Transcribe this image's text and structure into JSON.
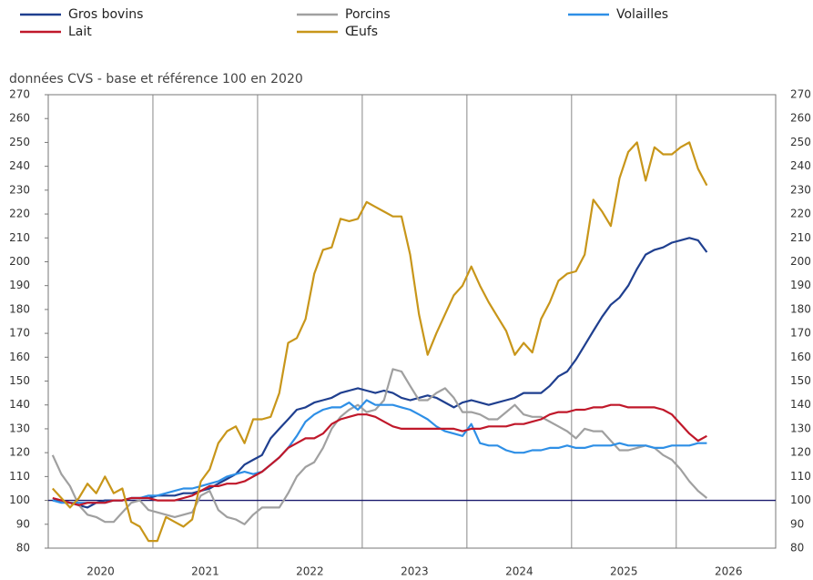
{
  "chart_data": {
    "type": "line",
    "subtitle": "données CVS - base et référence 100 en 2020",
    "x": [
      2020.042,
      2020.125,
      2020.208,
      2020.292,
      2020.375,
      2020.458,
      2020.542,
      2020.625,
      2020.708,
      2020.792,
      2020.875,
      2020.958,
      2021.042,
      2021.125,
      2021.208,
      2021.292,
      2021.375,
      2021.458,
      2021.542,
      2021.625,
      2021.708,
      2021.792,
      2021.875,
      2021.958,
      2022.042,
      2022.125,
      2022.208,
      2022.292,
      2022.375,
      2022.458,
      2022.542,
      2022.625,
      2022.708,
      2022.792,
      2022.875,
      2022.958,
      2023.042,
      2023.125,
      2023.208,
      2023.292,
      2023.375,
      2023.458,
      2023.542,
      2023.625,
      2023.708,
      2023.792,
      2023.875,
      2023.958,
      2024.042,
      2024.125,
      2024.208,
      2024.292,
      2024.375,
      2024.458,
      2024.542,
      2024.625,
      2024.708,
      2024.792,
      2024.875,
      2024.958,
      2025.042,
      2025.125,
      2025.208,
      2025.292,
      2025.375,
      2025.458,
      2025.542,
      2025.625,
      2025.708,
      2025.792,
      2025.875,
      2025.958,
      2026.042,
      2026.125,
      2026.208,
      2026.292
    ],
    "series": [
      {
        "name": "Gros bovins",
        "color": "#1f3f8f",
        "values": [
          100,
          100,
          99,
          98,
          97,
          99,
          100,
          100,
          100,
          101,
          101,
          101,
          102,
          102,
          102,
          103,
          103,
          104,
          105,
          107,
          109,
          111,
          115,
          117,
          119,
          126,
          130,
          134,
          138,
          139,
          141,
          142,
          143,
          145,
          146,
          147,
          146,
          145,
          146,
          145,
          143,
          142,
          143,
          144,
          143,
          141,
          139,
          141,
          142,
          141,
          140,
          141,
          142,
          143,
          145,
          145,
          145,
          148,
          152,
          154,
          159,
          165,
          171,
          177,
          182,
          185,
          190,
          197,
          203,
          205,
          206,
          208,
          209,
          210,
          209,
          204
        ]
      },
      {
        "name": "Porcins",
        "color": "#a0a0a0",
        "values": [
          119,
          111,
          106,
          98,
          94,
          93,
          91,
          91,
          95,
          99,
          100,
          96,
          95,
          94,
          93,
          94,
          95,
          102,
          104,
          96,
          93,
          92,
          90,
          94,
          97,
          97,
          97,
          103,
          110,
          114,
          116,
          122,
          130,
          135,
          138,
          140,
          137,
          138,
          142,
          155,
          154,
          148,
          142,
          142,
          145,
          147,
          143,
          137,
          137,
          136,
          134,
          134,
          137,
          140,
          136,
          135,
          135,
          133,
          131,
          129,
          126,
          130,
          129,
          129,
          125,
          121,
          121,
          122,
          123,
          122,
          119,
          117,
          113,
          108,
          104,
          101
        ]
      },
      {
        "name": "Volailles",
        "color": "#2e8fe6",
        "values": [
          100,
          99,
          99,
          99,
          99,
          99,
          99,
          100,
          100,
          101,
          101,
          102,
          102,
          103,
          104,
          105,
          105,
          106,
          107,
          108,
          110,
          111,
          112,
          111,
          112,
          115,
          118,
          122,
          127,
          133,
          136,
          138,
          139,
          139,
          141,
          138,
          142,
          140,
          140,
          140,
          139,
          138,
          136,
          134,
          131,
          129,
          128,
          127,
          132,
          124,
          123,
          123,
          121,
          120,
          120,
          121,
          121,
          122,
          122,
          123,
          122,
          122,
          123,
          123,
          123,
          124,
          123,
          123,
          123,
          122,
          122,
          123,
          123,
          123,
          124,
          124
        ]
      },
      {
        "name": "Lait",
        "color": "#c0182a",
        "values": [
          101,
          100,
          99,
          98,
          99,
          99,
          99,
          100,
          100,
          101,
          101,
          101,
          100,
          100,
          100,
          101,
          102,
          104,
          106,
          106,
          107,
          107,
          108,
          110,
          112,
          115,
          118,
          122,
          124,
          126,
          126,
          128,
          132,
          134,
          135,
          136,
          136,
          135,
          133,
          131,
          130,
          130,
          130,
          130,
          130,
          130,
          130,
          129,
          130,
          130,
          131,
          131,
          131,
          132,
          132,
          133,
          134,
          136,
          137,
          137,
          138,
          138,
          139,
          139,
          140,
          140,
          139,
          139,
          139,
          139,
          138,
          136,
          132,
          128,
          125,
          127
        ]
      },
      {
        "name": "Œufs",
        "color": "#c8961a",
        "values": [
          105,
          101,
          97,
          101,
          107,
          103,
          110,
          103,
          105,
          91,
          89,
          83,
          83,
          93,
          91,
          89,
          92,
          108,
          113,
          124,
          129,
          131,
          124,
          134,
          134,
          135,
          145,
          166,
          168,
          176,
          195,
          205,
          206,
          218,
          217,
          218,
          225,
          223,
          221,
          219,
          219,
          203,
          178,
          161,
          170,
          178,
          186,
          190,
          198,
          190,
          183,
          177,
          171,
          161,
          166,
          162,
          176,
          183,
          192,
          195,
          196,
          203,
          226,
          221,
          215,
          235,
          246,
          250,
          234,
          248,
          245,
          245,
          248,
          250,
          239,
          232
        ]
      }
    ],
    "xlim": [
      2020,
      2026.95
    ],
    "xticks": [
      {
        "value": 2020.5,
        "label": "2020"
      },
      {
        "value": 2021.5,
        "label": "2021"
      },
      {
        "value": 2022.5,
        "label": "2022"
      },
      {
        "value": 2023.5,
        "label": "2023"
      },
      {
        "value": 2024.5,
        "label": "2024"
      },
      {
        "value": 2025.5,
        "label": "2025"
      },
      {
        "value": 2026.5,
        "label": "2026"
      }
    ],
    "xgrid": [
      2021,
      2022,
      2023,
      2024,
      2025,
      2026
    ],
    "ylim": [
      80,
      270
    ],
    "yticks": [
      80,
      90,
      100,
      110,
      120,
      130,
      140,
      150,
      160,
      170,
      180,
      190,
      200,
      210,
      220,
      230,
      240,
      250,
      260,
      270
    ],
    "reference_line": 100
  }
}
